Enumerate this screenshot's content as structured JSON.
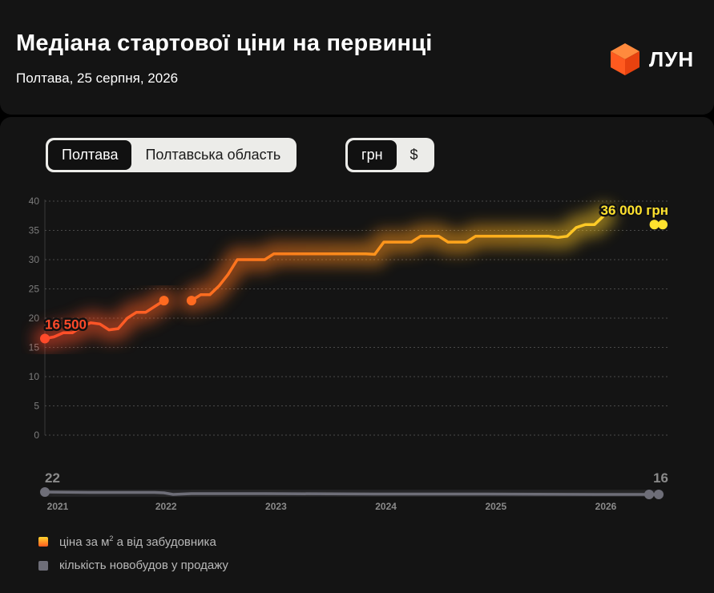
{
  "header": {
    "title": "Медіана стартової ціни на первинці",
    "subtitle": "Полтава, 25 серпня, 2026",
    "logo_text": "ЛУН"
  },
  "region_toggle": {
    "options": [
      "Полтава",
      "Полтавська область"
    ],
    "selected": "Полтава"
  },
  "currency_toggle": {
    "options": [
      "грн",
      "$"
    ],
    "selected": "грн"
  },
  "legend": {
    "price_pre": "ціна за м",
    "price_sup": "2",
    "price_post": " а від забудовника",
    "count": "кількість новобудов у продажу"
  },
  "colors": {
    "price_start": "#ff4a2a",
    "price_mid": "#ff8a1a",
    "price_end": "#ffe22e",
    "count": "#6e6e78",
    "background": "#141414"
  },
  "chart_data": {
    "type": "line",
    "y_ticks": [
      0,
      5,
      10,
      15,
      20,
      25,
      30,
      35,
      40
    ],
    "ylim": [
      0,
      40
    ],
    "x_ticks": [
      "2021",
      "2022",
      "2023",
      "2024",
      "2025",
      "2026"
    ],
    "start_label": "16 500",
    "end_label": "36 000 грн",
    "count_start_label": "22",
    "count_end_label": "16",
    "price_series": {
      "name": "ціна за м² а від забудовника",
      "segments": [
        [
          [
            "2021-01",
            16.5
          ],
          [
            "2021-02",
            16.8
          ],
          [
            "2021-03",
            17.5
          ],
          [
            "2021-04",
            17.5
          ],
          [
            "2021-05",
            18.5
          ],
          [
            "2021-06",
            19.2
          ],
          [
            "2021-07",
            19.0
          ],
          [
            "2021-08",
            18.0
          ],
          [
            "2021-09",
            18.2
          ],
          [
            "2021-10",
            20.0
          ],
          [
            "2021-11",
            21.0
          ],
          [
            "2021-12",
            21.0
          ],
          [
            "2022-01",
            22.0
          ],
          [
            "2022-02",
            23.0
          ]
        ],
        [
          [
            "2022-05",
            23.0
          ],
          [
            "2022-06",
            24.0
          ],
          [
            "2022-07",
            24.0
          ],
          [
            "2022-08",
            25.5
          ],
          [
            "2022-09",
            27.5
          ],
          [
            "2022-10",
            30.0
          ],
          [
            "2022-11",
            30.0
          ],
          [
            "2022-12",
            30.0
          ],
          [
            "2023-01",
            30.0
          ],
          [
            "2023-02",
            31.0
          ],
          [
            "2023-03",
            31.0
          ],
          [
            "2023-04",
            31.0
          ],
          [
            "2023-06",
            31.0
          ],
          [
            "2023-08",
            31.0
          ],
          [
            "2023-10",
            31.0
          ],
          [
            "2023-12",
            31.0
          ],
          [
            "2024-01",
            30.9
          ],
          [
            "2024-02",
            33.0
          ],
          [
            "2024-03",
            33.0
          ],
          [
            "2024-04",
            33.0
          ],
          [
            "2024-05",
            33.0
          ],
          [
            "2024-06",
            34.0
          ],
          [
            "2024-07",
            34.0
          ],
          [
            "2024-08",
            34.0
          ],
          [
            "2024-09",
            33.0
          ],
          [
            "2024-10",
            33.0
          ],
          [
            "2024-11",
            33.0
          ],
          [
            "2024-12",
            34.0
          ],
          [
            "2025-01",
            34.0
          ],
          [
            "2025-03",
            34.0
          ],
          [
            "2025-05",
            34.0
          ],
          [
            "2025-07",
            34.0
          ],
          [
            "2025-08",
            34.0
          ],
          [
            "2025-09",
            33.8
          ],
          [
            "2025-10",
            34.0
          ],
          [
            "2025-11",
            35.5
          ],
          [
            "2025-12",
            36.0
          ],
          [
            "2026-01",
            36.0
          ],
          [
            "2026-02",
            37.5
          ]
        ]
      ],
      "end_points": [
        [
          "2026-07",
          36.0
        ],
        [
          "2026-08",
          36.0
        ]
      ]
    },
    "count_series": {
      "name": "кількість новобудов у продажу",
      "points": [
        [
          "2021-01",
          22
        ],
        [
          "2021-06",
          21
        ],
        [
          "2022-01",
          21
        ],
        [
          "2022-02",
          20
        ],
        [
          "2022-03",
          16
        ],
        [
          "2022-05",
          18
        ],
        [
          "2022-08",
          18
        ],
        [
          "2023-01",
          18
        ],
        [
          "2024-01",
          17
        ],
        [
          "2025-01",
          17
        ],
        [
          "2026-01",
          16
        ],
        [
          "2026-08",
          16
        ]
      ]
    }
  }
}
